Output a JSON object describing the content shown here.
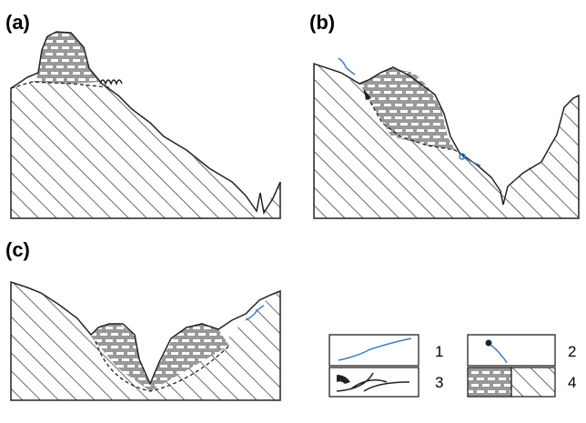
{
  "panels": [
    {
      "label": "(a)"
    },
    {
      "label": "(b)"
    },
    {
      "label": "(c)"
    }
  ],
  "legend": [
    {
      "label": "1"
    },
    {
      "label": "2"
    },
    {
      "label": "3"
    },
    {
      "label": "4"
    }
  ]
}
